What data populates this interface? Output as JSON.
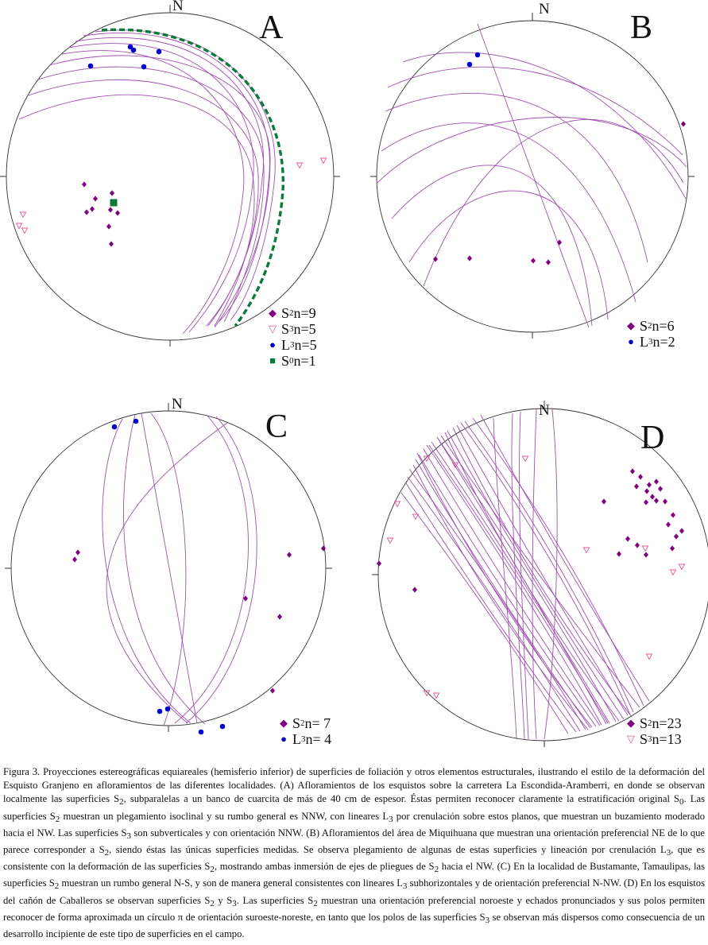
{
  "figure": {
    "panels": [
      {
        "id": "A",
        "letter": "A",
        "north": "N",
        "legend": [
          {
            "symbol": "diamond",
            "label": "S",
            "sub": "2",
            "text": " n=9",
            "color": "#800080"
          },
          {
            "symbol": "triangle",
            "label": "S",
            "sub": "3",
            "text": "n=5",
            "color": "#e05a9a"
          },
          {
            "symbol": "circle",
            "label": "L",
            "sub": "3",
            "text": " n=5",
            "color": "#0000cc"
          },
          {
            "symbol": "square",
            "label": "S",
            "sub": "0",
            "text": " n=1",
            "color": "#0a7a3a"
          }
        ]
      },
      {
        "id": "B",
        "letter": "B",
        "north": "N",
        "legend": [
          {
            "symbol": "diamond",
            "label": "S",
            "sub": "2",
            "text": " n=6",
            "color": "#800080"
          },
          {
            "symbol": "circle",
            "label": "L",
            "sub": "3",
            "text": " n=2",
            "color": "#0000cc"
          }
        ]
      },
      {
        "id": "C",
        "letter": "C",
        "north": "N",
        "legend": [
          {
            "symbol": "diamond",
            "label": "S",
            "sub": "2",
            "text": " n= 7",
            "color": "#800080"
          },
          {
            "symbol": "circle",
            "label": "L",
            "sub": "3",
            "text": " n= 4",
            "color": "#0000cc"
          }
        ]
      },
      {
        "id": "D",
        "letter": "D",
        "north": "N",
        "legend": [
          {
            "symbol": "diamond",
            "label": "S",
            "sub": "2",
            "text": " n=23",
            "color": "#800080"
          },
          {
            "symbol": "triangle",
            "label": "S",
            "sub": "3",
            "text": " n=13",
            "color": "#e05a9a"
          }
        ]
      }
    ],
    "colors": {
      "great_circle": "#a050b0",
      "s2": "#800080",
      "s3": "#e05a9a",
      "l3": "#0000cc",
      "s0": "#0a7a3a"
    }
  },
  "caption": {
    "parts": [
      {
        "t": "Figura 3. Proyecciones estereográficas equiareales (hemisferio inferior) de superficies de foliación y otros elementos estructurales, ilustrando el estilo de la deformación del Esquisto Granjeno en afloramientos de las diferentes localidades. (A) Afloramientos de los esquistos sobre la carretera La Escondida-Aramberri, en donde se observan localmente las superficies S"
      },
      {
        "sub": "2"
      },
      {
        "t": ", subparalelas a un banco de cuarcita de más de 40 cm de espesor. Éstas permiten reconocer claramente la estratificación original S"
      },
      {
        "sub": "0"
      },
      {
        "t": ". Las superficies S"
      },
      {
        "sub": "2"
      },
      {
        "t": " muestran un plegamiento isoclinal y su rumbo general es NNW, con lineares L"
      },
      {
        "sub": "3"
      },
      {
        "t": " por crenulación sobre estos planos, que muestran un buzamiento moderado hacia el NW. Las superficies S"
      },
      {
        "sub": "3"
      },
      {
        "t": " son subverticales y con orientación NNW. (B) Afloramientos del área de Miquihuana que muestran una orientación preferencial NE de lo que parece corresponder a S"
      },
      {
        "sub": "2"
      },
      {
        "t": ", siendo éstas las únicas superficies medidas. Se observa plegamiento de algunas de estas superficies y lineación por crenulación L"
      },
      {
        "sub": "3"
      },
      {
        "t": ", que es consistente con la deformación de las superficies S"
      },
      {
        "sub": "2"
      },
      {
        "t": ", mostrando ambas inmersión de ejes de pliegues de S"
      },
      {
        "sub": "2"
      },
      {
        "t": " hacia el NW. (C) En la localidad de Bustamante, Tamaulipas, las superficies S"
      },
      {
        "sub": "2"
      },
      {
        "t": " muestran un rumbo general N-S, y son de manera general consistentes con lineares L"
      },
      {
        "sub": "3"
      },
      {
        "t": " subhorizontales y de orientación preferencial N-NW. (D) En los esquistos del cañón de Caballeros se observan superficies S"
      },
      {
        "sub": "2"
      },
      {
        "t": " y S"
      },
      {
        "sub": "3"
      },
      {
        "t": ". Las superficies S"
      },
      {
        "sub": "2"
      },
      {
        "t": " muestran una orientación preferencial noroeste y echados pronunciados y sus polos permiten reconocer de forma aproximada un círculo π de orientación suroeste-noreste, en tanto que los polos de las superficies S"
      },
      {
        "sub": "3"
      },
      {
        "t": " se observan más dispersos como consecuencia de un desarrollo incipiente de este tipo de superficies en el campo."
      }
    ]
  }
}
